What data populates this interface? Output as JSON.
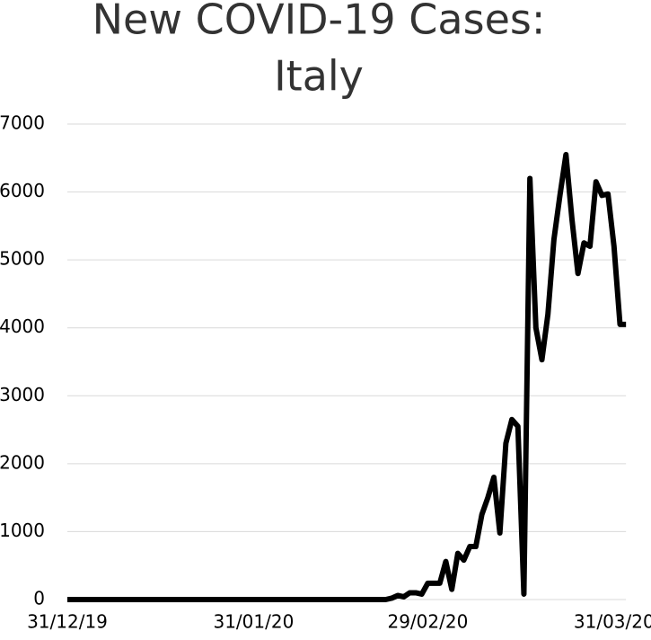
{
  "chart_data": {
    "type": "line",
    "title": [
      "New COVID-19 Cases:",
      "Italy"
    ],
    "categories": [
      "31/12/19",
      null,
      null,
      null,
      null,
      null,
      null,
      null,
      null,
      null,
      null,
      null,
      null,
      null,
      null,
      null,
      null,
      null,
      null,
      null,
      null,
      null,
      null,
      null,
      null,
      null,
      null,
      null,
      null,
      null,
      null,
      "31/01/20",
      null,
      null,
      null,
      null,
      null,
      null,
      null,
      null,
      null,
      null,
      null,
      null,
      null,
      null,
      null,
      null,
      null,
      null,
      null,
      null,
      null,
      null,
      null,
      null,
      null,
      null,
      null,
      null,
      "29/02/20",
      null,
      null,
      null,
      null,
      null,
      null,
      null,
      null,
      null,
      null,
      null,
      null,
      null,
      null,
      null,
      null,
      null,
      null,
      null,
      null,
      null,
      null,
      null,
      null,
      null,
      null,
      null,
      null,
      null,
      null,
      "31/03/20",
      null,
      null
    ],
    "values": [
      0,
      0,
      0,
      0,
      0,
      0,
      0,
      0,
      0,
      0,
      0,
      0,
      0,
      0,
      0,
      0,
      0,
      0,
      0,
      0,
      0,
      0,
      0,
      0,
      0,
      0,
      0,
      0,
      0,
      0,
      0,
      0,
      0,
      0,
      0,
      0,
      0,
      0,
      0,
      0,
      0,
      0,
      0,
      0,
      0,
      0,
      0,
      0,
      0,
      0,
      0,
      0,
      0,
      0,
      20,
      60,
      40,
      100,
      100,
      80,
      240,
      240,
      240,
      560,
      150,
      680,
      580,
      780,
      780,
      1250,
      1500,
      1800,
      980,
      2300,
      2650,
      2550,
      80,
      6200,
      4000,
      3530,
      4200,
      5300,
      5950,
      6550,
      5600,
      4800,
      5250,
      5200,
      6150,
      5950,
      5970,
      5200,
      4050,
      4050
    ],
    "color": "#000000",
    "ylim": [
      0,
      7000
    ],
    "yticks": [
      0,
      1000,
      2000,
      3000,
      4000,
      5000,
      6000,
      7000
    ],
    "grid": true
  }
}
